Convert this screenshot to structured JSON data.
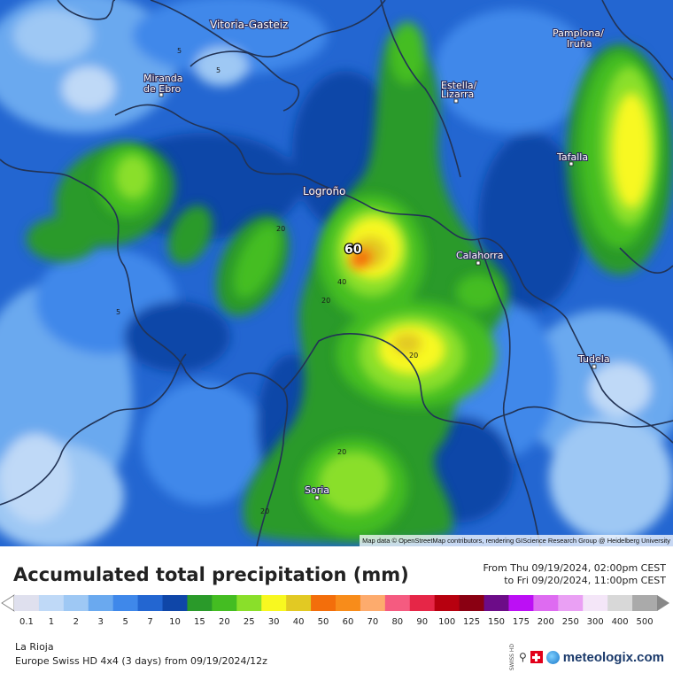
{
  "map": {
    "cities": [
      {
        "name": "Vitoria-Gasteiz"
      },
      {
        "name": "Pamplona/"
      },
      {
        "name": "Iruña"
      },
      {
        "name": "Miranda"
      },
      {
        "name": "de Ebro"
      },
      {
        "name": "Estella/"
      },
      {
        "name": "Lizarra"
      },
      {
        "name": "Logroño"
      },
      {
        "name": "Tafalla"
      },
      {
        "name": "Calahorra"
      },
      {
        "name": "Tudela"
      },
      {
        "name": "Soria"
      }
    ],
    "contour_labels": [
      "5",
      "5",
      "5",
      "20",
      "20",
      "20",
      "20",
      "20",
      "40"
    ],
    "max_value": "60",
    "attribution": "Map data © OpenStreetMap contributors, rendering GIScience Research Group @ Heidelberg University"
  },
  "header": {
    "title": "Accumulated total precipitation (mm)",
    "period_from": "From Thu 09/19/2024, 02:00pm CEST",
    "period_to": "to Fri 09/20/2024, 11:00pm CEST"
  },
  "legend": {
    "values": [
      "0.1",
      "1",
      "2",
      "3",
      "5",
      "7",
      "10",
      "15",
      "20",
      "25",
      "30",
      "40",
      "50",
      "60",
      "70",
      "80",
      "90",
      "100",
      "125",
      "150",
      "175",
      "200",
      "250",
      "300",
      "400",
      "500"
    ],
    "colors": [
      "#dfe0ee",
      "#bfd9f7",
      "#9ec8f4",
      "#6aa9ef",
      "#3f88ea",
      "#2366d1",
      "#0f46a8",
      "#2a9a2a",
      "#44bd22",
      "#8adf2a",
      "#f8f820",
      "#e2c923",
      "#f36e0b",
      "#f88c1a",
      "#fdab6d",
      "#f55b80",
      "#e62647",
      "#b7000f",
      "#8a0012",
      "#6c0c88",
      "#bc0ff5",
      "#de6bf1",
      "#eaa0f4",
      "#f4e6f8",
      "#d8d8d8",
      "#aaaaaa"
    ]
  },
  "footer": {
    "location": "La Rioja",
    "model": "Europe Swiss HD 4x4 (3 days) from 09/19/2024/12z",
    "swiss_hd": "SWISS HD",
    "brand": "meteologix.com"
  }
}
